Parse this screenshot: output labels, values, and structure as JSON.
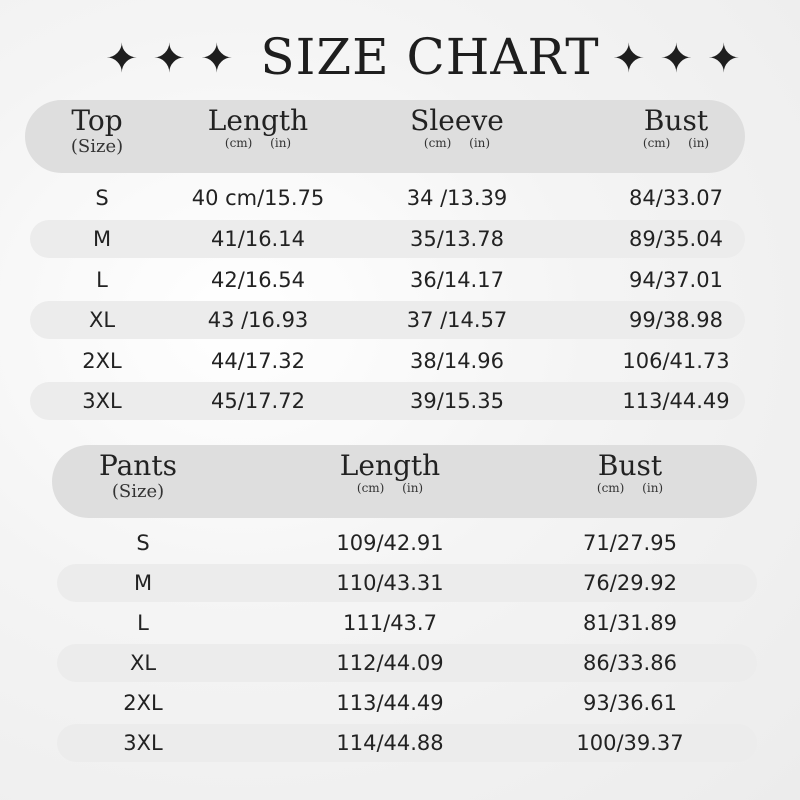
{
  "title": "SIZE CHART",
  "decoration": {
    "star_icon": "four-point-star",
    "stars_each_side": 3
  },
  "top": {
    "headers": [
      {
        "label": "Top",
        "sub": "(Size)"
      },
      {
        "label": "Length",
        "sub": "(cm) (in)"
      },
      {
        "label": "Sleeve",
        "sub": "(cm) (in)"
      },
      {
        "label": "Bust",
        "sub": "(cm) (in)"
      }
    ],
    "rows": [
      [
        "S",
        "40 cm/15.75",
        "34 /13.39",
        "84/33.07"
      ],
      [
        "M",
        "41/16.14",
        "35/13.78",
        "89/35.04"
      ],
      [
        "L",
        "42/16.54",
        "36/14.17",
        "94/37.01"
      ],
      [
        "XL",
        "43 /16.93",
        "37 /14.57",
        "99/38.98"
      ],
      [
        "2XL",
        "44/17.32",
        "38/14.96",
        "106/41.73"
      ],
      [
        "3XL",
        "45/17.72",
        "39/15.35",
        "113/44.49"
      ]
    ]
  },
  "pants": {
    "headers": [
      {
        "label": "Pants",
        "sub": "(Size)"
      },
      {
        "label": "Length",
        "sub": "(cm) (in)"
      },
      {
        "label": "Bust",
        "sub": "(cm) (in)"
      }
    ],
    "rows": [
      [
        "S",
        "109/42.91",
        "71/27.95"
      ],
      [
        "M",
        "110/43.31",
        "76/29.92"
      ],
      [
        "L",
        "111/43.7",
        "81/31.89"
      ],
      [
        "XL",
        "112/44.09",
        "86/33.86"
      ],
      [
        "2XL",
        "113/44.49",
        "93/36.61"
      ],
      [
        "3XL",
        "114/44.88",
        "100/39.37"
      ]
    ]
  }
}
